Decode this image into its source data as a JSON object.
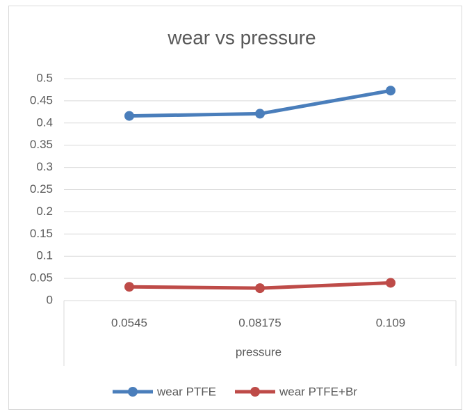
{
  "chart_data": {
    "type": "line",
    "title": "wear vs pressure",
    "x_label": "pressure",
    "categories": [
      "0.0545",
      "0.08175",
      "0.109"
    ],
    "series": [
      {
        "name": "wear PTFE",
        "color": "#4a7ebb",
        "values": [
          0.416,
          0.421,
          0.473
        ]
      },
      {
        "name": "wear PTFE+Br",
        "color": "#be4b48",
        "values": [
          0.031,
          0.028,
          0.04
        ]
      }
    ],
    "ylim": [
      0,
      0.5
    ],
    "yticks": [
      0,
      0.05,
      0.1,
      0.15,
      0.2,
      0.25,
      0.3,
      0.35,
      0.4,
      0.45,
      0.5
    ],
    "grid": true,
    "legend": "bottom"
  }
}
